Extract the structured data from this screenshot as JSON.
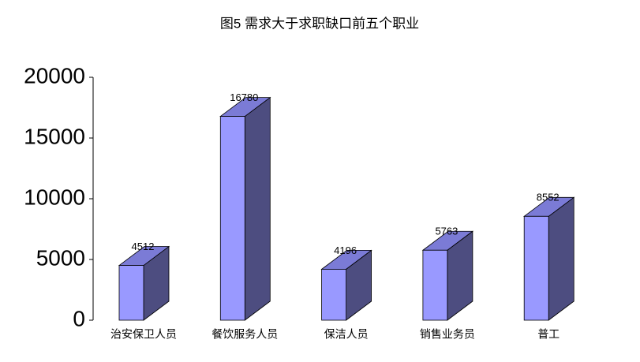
{
  "chart_data": {
    "type": "bar3d",
    "title": "图5  需求大于求职缺口前五个职业",
    "categories": [
      "治安保卫人员",
      "餐饮服务人员",
      "保洁人员",
      "销售业务员",
      "普工"
    ],
    "values": [
      4512,
      16780,
      4196,
      5763,
      8552
    ],
    "colors": {
      "front": "#9999ff",
      "side": "#4d4d80",
      "top": "#7b7bd6"
    },
    "ylim": [
      0,
      20000
    ],
    "yticks": [
      0,
      5000,
      10000,
      15000,
      20000
    ]
  }
}
